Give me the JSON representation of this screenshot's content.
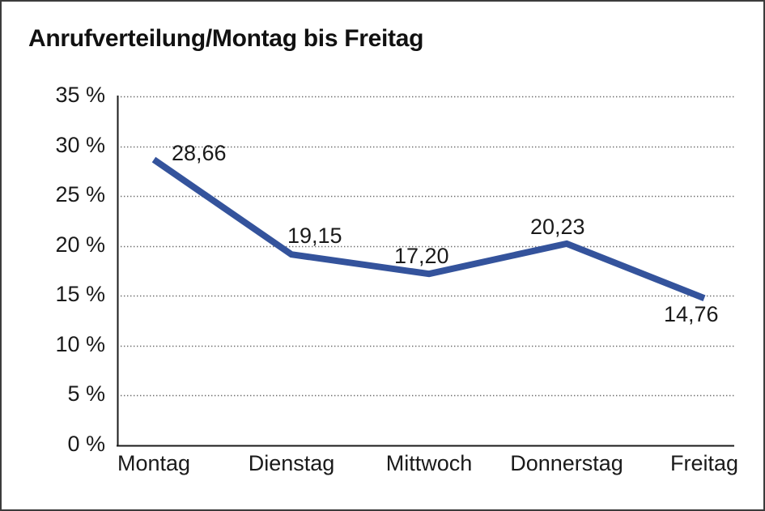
{
  "chart_data": {
    "type": "line",
    "title": "Anrufverteilung/Montag bis Freitag",
    "categories": [
      "Montag",
      "Dienstag",
      "Mittwoch",
      "Donnerstag",
      "Freitag"
    ],
    "values": [
      28.66,
      19.15,
      17.2,
      20.23,
      14.76
    ],
    "value_labels": [
      "28,66",
      "19,15",
      "17,20",
      "20,23",
      "14,76"
    ],
    "series_count": 1,
    "xlabel": "",
    "ylabel": "",
    "ylim": [
      0,
      35
    ],
    "y_ticks": [
      {
        "value": 0,
        "label": "0 %"
      },
      {
        "value": 5,
        "label": "5 %"
      },
      {
        "value": 10,
        "label": "10 %"
      },
      {
        "value": 15,
        "label": "15 %"
      },
      {
        "value": 20,
        "label": "20 %"
      },
      {
        "value": 25,
        "label": "25 %"
      },
      {
        "value": 30,
        "label": "30 %"
      },
      {
        "value": 35,
        "label": "35 %"
      }
    ],
    "grid": "horizontal-dotted",
    "legend": "none",
    "colors": {
      "line": "#34539C",
      "axis": "#1a1a1a",
      "gridline": "#6b6b6b",
      "text": "#1a1a1a",
      "background": "#ffffff"
    }
  }
}
